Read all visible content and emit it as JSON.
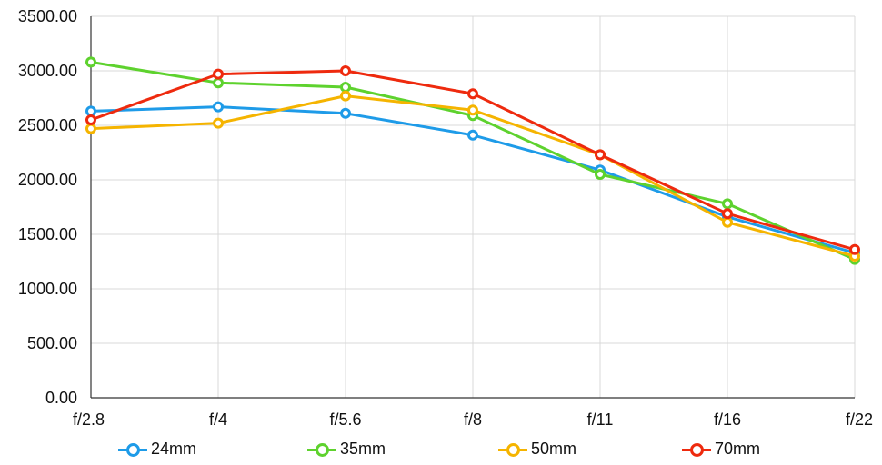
{
  "chart_data": {
    "type": "line",
    "title": "",
    "xlabel": "",
    "ylabel": "",
    "categories": [
      "f/2.8",
      "f/4",
      "f/5.6",
      "f/8",
      "f/11",
      "f/16",
      "f/22"
    ],
    "ylim": [
      0,
      3500
    ],
    "yticks": [
      0,
      500,
      1000,
      1500,
      2000,
      2500,
      3000,
      3500
    ],
    "ytick_labels": [
      "0.00",
      "500.00",
      "1000.00",
      "1500.00",
      "2000.00",
      "2500.00",
      "3000.00",
      "3500.00"
    ],
    "grid": true,
    "legend_position": "bottom",
    "series": [
      {
        "name": "24mm",
        "color": "#1E9BE8",
        "values": [
          2630,
          2670,
          2610,
          2410,
          2090,
          1660,
          1330
        ]
      },
      {
        "name": "35mm",
        "color": "#5ED22E",
        "values": [
          3080,
          2890,
          2850,
          2590,
          2050,
          1780,
          1270
        ]
      },
      {
        "name": "50mm",
        "color": "#F5B400",
        "values": [
          2470,
          2520,
          2770,
          2640,
          2230,
          1610,
          1300
        ]
      },
      {
        "name": "70mm",
        "color": "#EE2A0E",
        "values": [
          2550,
          2970,
          3000,
          2790,
          2230,
          1690,
          1360
        ]
      }
    ]
  }
}
